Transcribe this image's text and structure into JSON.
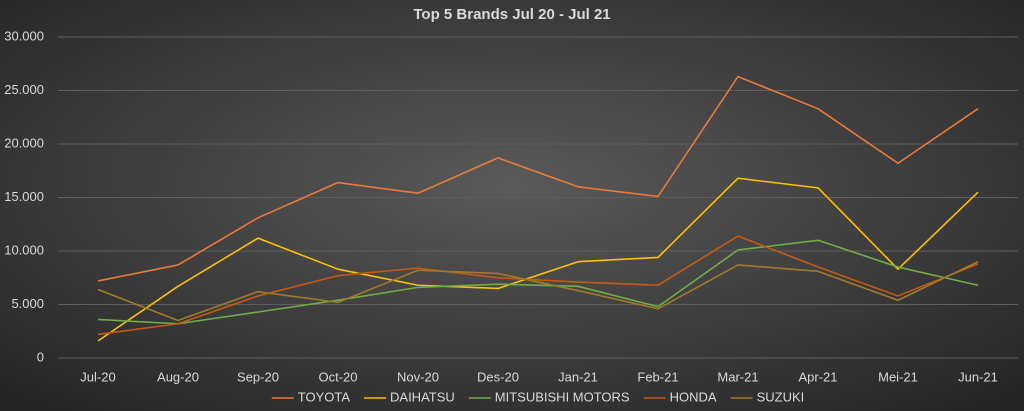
{
  "chart_data": {
    "type": "line",
    "title": "Top 5 Brands Jul 20 - Jul 21",
    "categories": [
      "Jul-20",
      "Aug-20",
      "Sep-20",
      "Oct-20",
      "Nov-20",
      "Des-20",
      "Jan-21",
      "Feb-21",
      "Mar-21",
      "Apr-21",
      "Mei-21",
      "Jun-21"
    ],
    "series": [
      {
        "name": "TOYOTA",
        "color": "#e97a3b",
        "values": [
          7200,
          8700,
          13100,
          16400,
          15400,
          18700,
          16000,
          15100,
          26300,
          23300,
          18200,
          23300
        ]
      },
      {
        "name": "DAIHATSU",
        "color": "#ffc000",
        "values": [
          1600,
          6700,
          11200,
          8300,
          6800,
          6500,
          9000,
          9400,
          16800,
          15900,
          8300,
          15500
        ]
      },
      {
        "name": "MITSUBISHI MOTORS",
        "color": "#70ad47",
        "values": [
          3600,
          3200,
          4300,
          5400,
          6600,
          6900,
          6700,
          4800,
          10100,
          11000,
          8500,
          6800
        ]
      },
      {
        "name": "HONDA",
        "color": "#c55a11",
        "values": [
          2200,
          3200,
          5800,
          7700,
          8400,
          7500,
          7100,
          6800,
          11400,
          8500,
          5800,
          8800
        ]
      },
      {
        "name": "SUZUKI",
        "color": "#a07a2c",
        "values": [
          6400,
          3500,
          6200,
          5200,
          8200,
          7900,
          6300,
          4600,
          8700,
          8100,
          5400,
          9000
        ]
      }
    ],
    "ylim": [
      0,
      30000
    ],
    "yticks": [
      0,
      {
        "value": 5000,
        "label": "5.000"
      },
      {
        "value": 10000,
        "label": "10.000"
      },
      {
        "value": 15000,
        "label": "15.000"
      },
      {
        "value": 20000,
        "label": "20.000"
      },
      {
        "value": 25000,
        "label": "25.000"
      },
      {
        "value": 30000,
        "label": "30.000"
      }
    ],
    "grid": true,
    "legend": "bottom"
  }
}
